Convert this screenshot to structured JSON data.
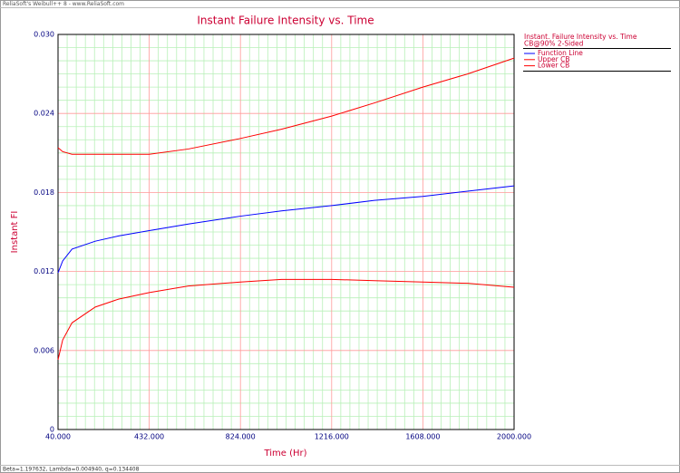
{
  "chart_data": {
    "type": "line",
    "header": "ReliaSoft's Weibull++ 8 - www.ReliaSoft.com",
    "title": "Instant Failure Intensity vs. Time",
    "x_label": "Time (Hr)",
    "y_label": "Instant FI",
    "footer": "Beta=1.197632, Lambda=0.004940, q=0.134408",
    "legend_title": [
      "Instant. Failure Intensity vs. Time",
      "CB@90% 2-Sided"
    ],
    "x": [
      40,
      60,
      100,
      200,
      300,
      432,
      600,
      824,
      1000,
      1216,
      1400,
      1608,
      1800,
      2000
    ],
    "series": [
      {
        "name": "Function Line",
        "color": "#0000ff",
        "values": [
          0.0119,
          0.0128,
          0.0137,
          0.0143,
          0.0147,
          0.0151,
          0.0156,
          0.0162,
          0.0166,
          0.017,
          0.0174,
          0.0177,
          0.0181,
          0.0185
        ]
      },
      {
        "name": "Upper CB",
        "color": "#ff0000",
        "values": [
          0.0214,
          0.0211,
          0.0209,
          0.0209,
          0.0209,
          0.0209,
          0.0213,
          0.0221,
          0.0228,
          0.0238,
          0.0248,
          0.026,
          0.027,
          0.0282
        ]
      },
      {
        "name": "Lower CB",
        "color": "#ff0000",
        "values": [
          0.0053,
          0.0068,
          0.0081,
          0.0093,
          0.0099,
          0.0104,
          0.0109,
          0.0112,
          0.0114,
          0.0114,
          0.0113,
          0.0112,
          0.0111,
          0.0108
        ]
      }
    ],
    "xlim": [
      40,
      2000
    ],
    "xticks": [
      {
        "value": 40,
        "label": "40.000"
      },
      {
        "value": 432,
        "label": "432.000"
      },
      {
        "value": 824,
        "label": "824.000"
      },
      {
        "value": 1216,
        "label": "1216.000"
      },
      {
        "value": 1608,
        "label": "1608.000"
      },
      {
        "value": 2000,
        "label": "2000.000"
      }
    ],
    "ylim": [
      0,
      0.03
    ],
    "yticks": [
      0,
      0.006,
      0.012,
      0.018,
      0.024,
      {
        "value": 0.03,
        "label": "0.030"
      }
    ],
    "grid": true,
    "grid_color": "#ff9999",
    "minor_grid_color": "#b8f0b8"
  }
}
